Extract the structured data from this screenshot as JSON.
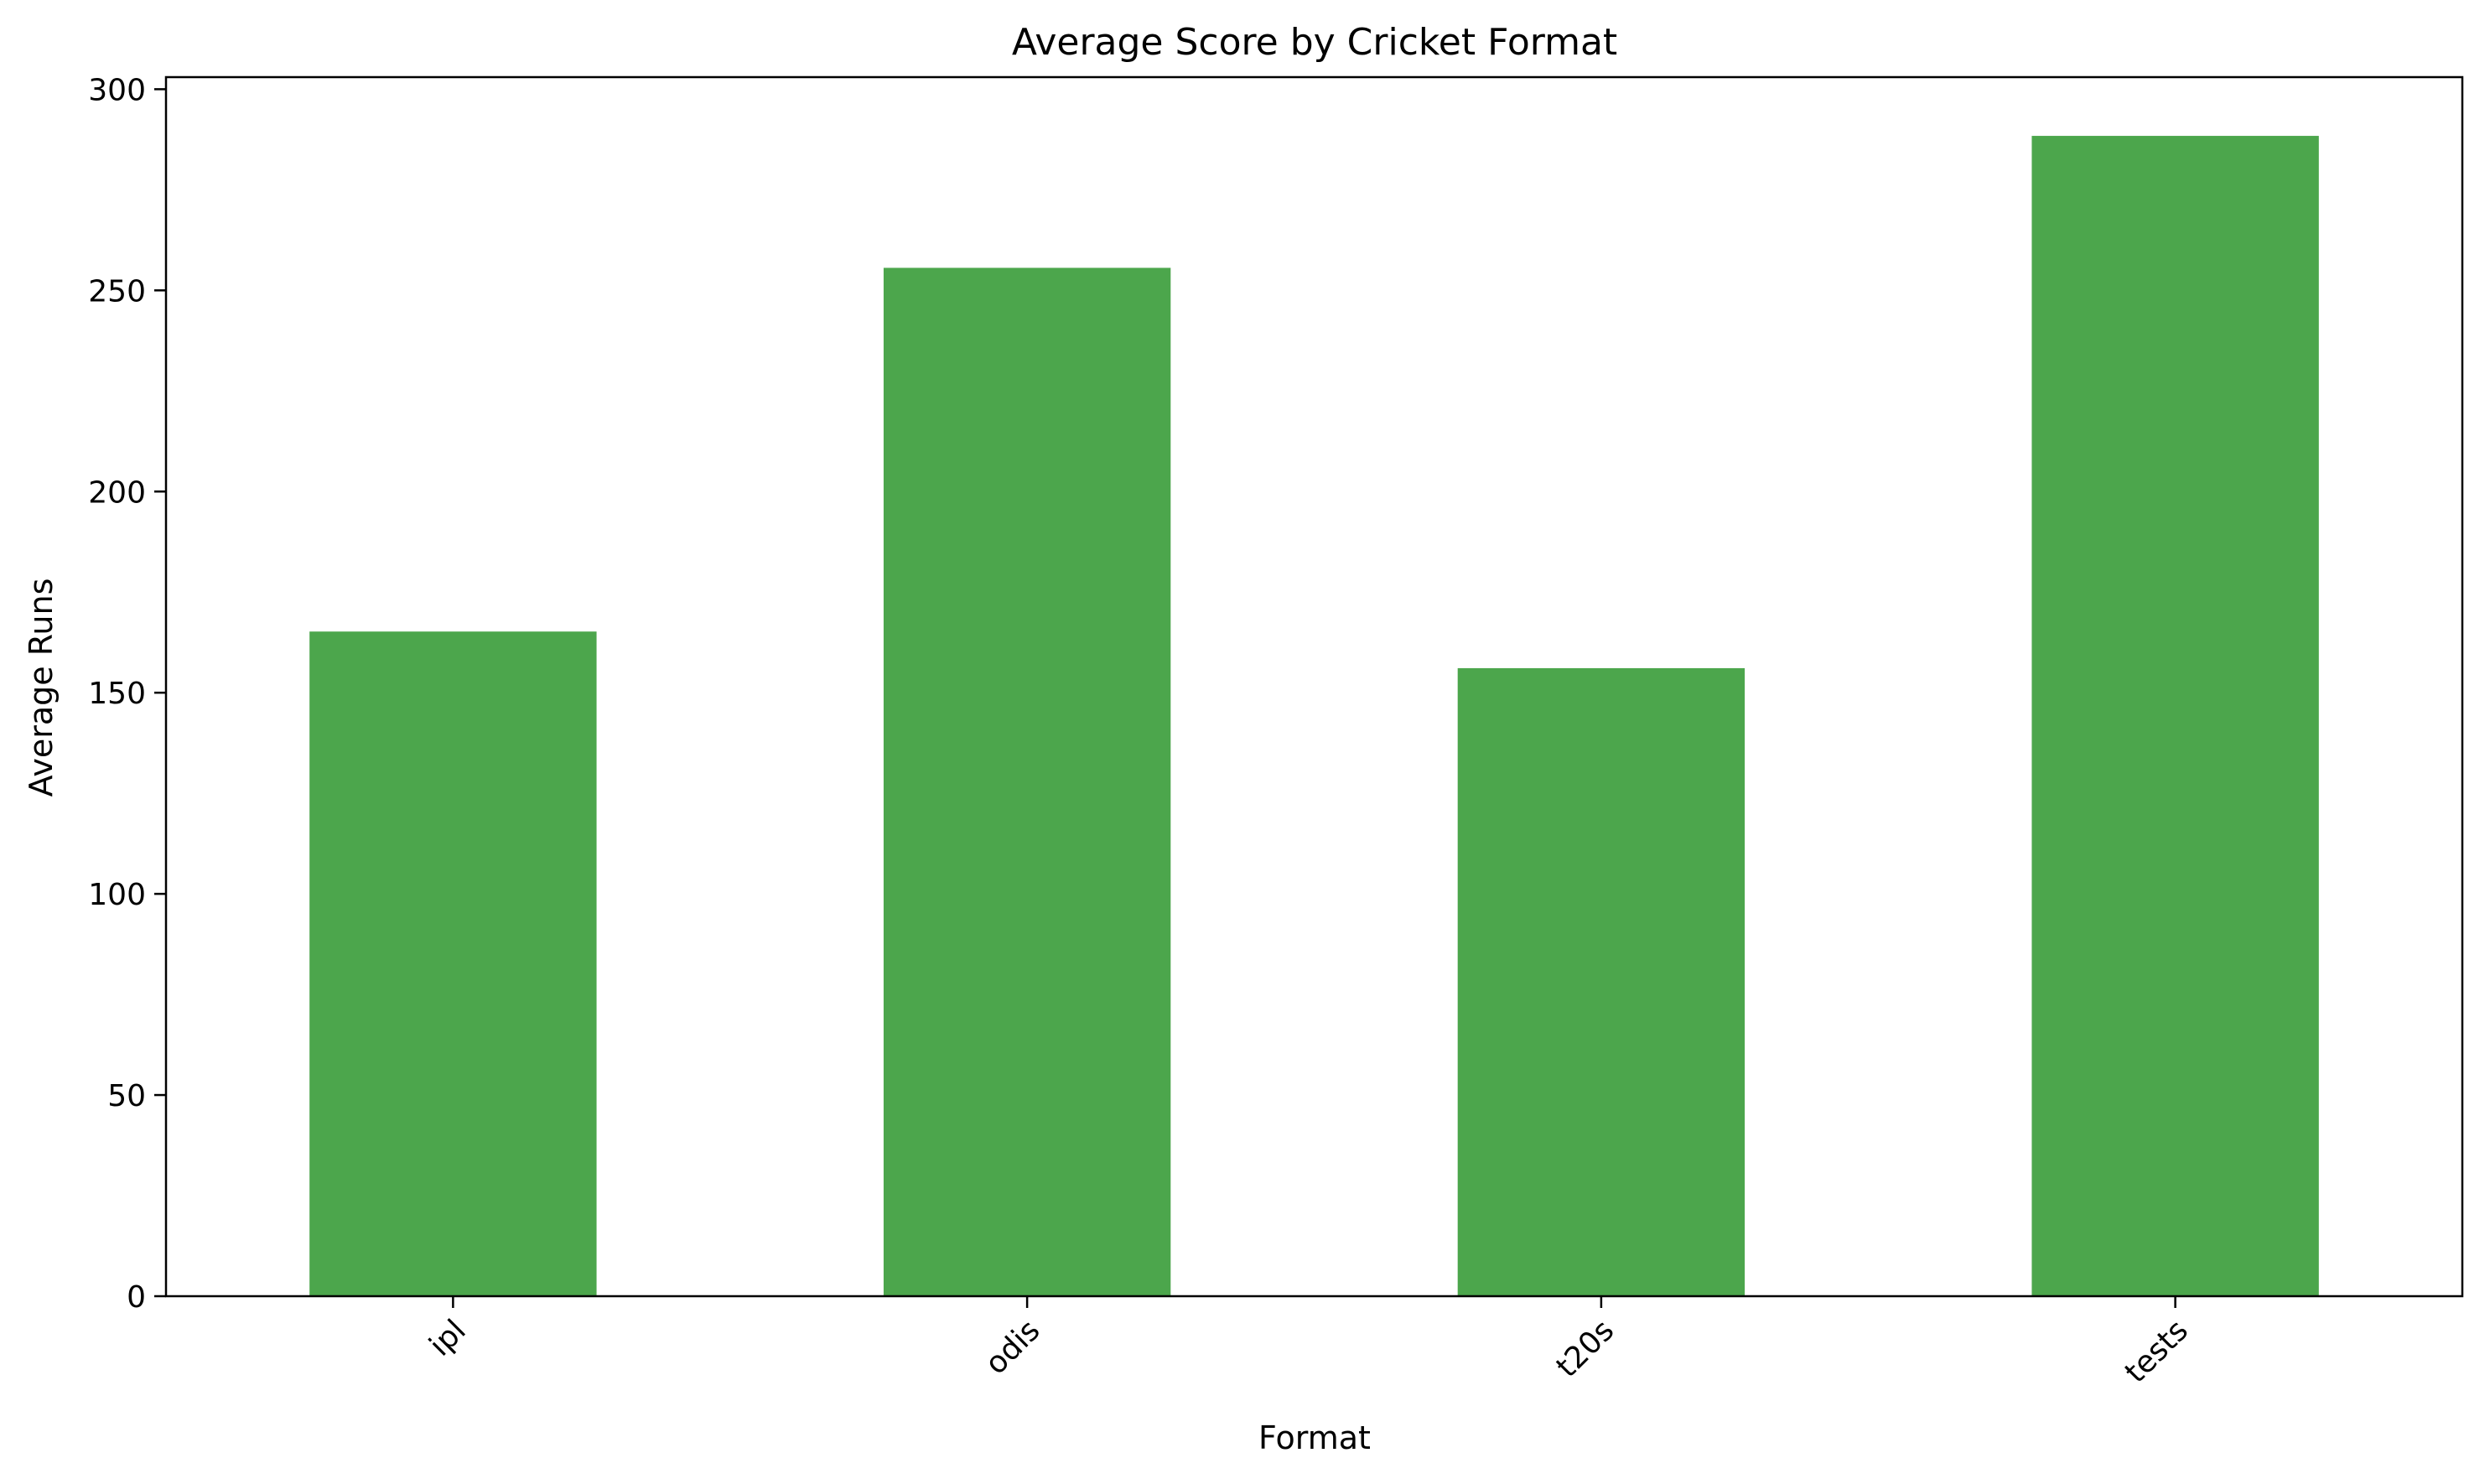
{
  "chart_data": {
    "type": "bar",
    "title": "Average Score by Cricket Format",
    "xlabel": "Format",
    "ylabel": "Average Runs",
    "categories": [
      "ipl",
      "odis",
      "t20s",
      "tests"
    ],
    "values": [
      165.2,
      255.6,
      156.1,
      288.4
    ],
    "ylim": [
      0,
      303
    ],
    "yticks": [
      0,
      50,
      100,
      150,
      200,
      250,
      300
    ],
    "grid": false,
    "bar_color": "#4ca64c",
    "x_tick_rotation_deg": 45
  }
}
